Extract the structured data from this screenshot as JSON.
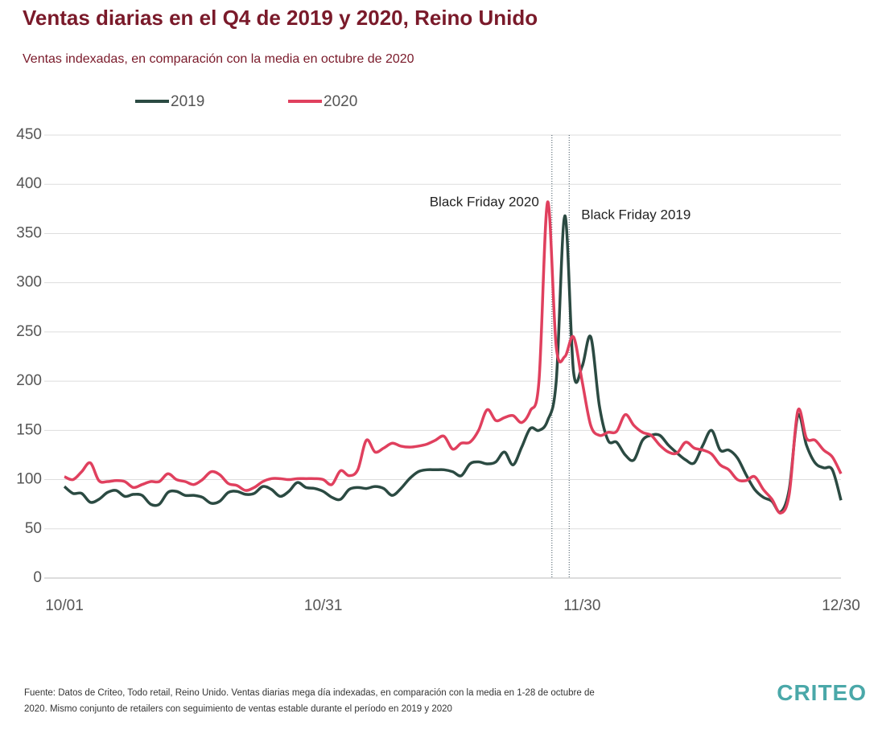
{
  "chart_data": {
    "type": "line",
    "title": "Ventas diarias en el Q4 de 2019 y 2020, Reino Unido",
    "subtitle": "Ventas indexadas, en comparación con la media en octubre de 2020",
    "categories": [
      "10/01",
      null,
      null,
      null,
      null,
      null,
      null,
      null,
      null,
      null,
      null,
      null,
      null,
      null,
      null,
      null,
      null,
      null,
      null,
      null,
      null,
      null,
      null,
      null,
      null,
      null,
      null,
      null,
      null,
      null,
      "10/31",
      null,
      null,
      null,
      null,
      null,
      null,
      null,
      null,
      null,
      null,
      null,
      null,
      null,
      null,
      null,
      null,
      null,
      null,
      null,
      null,
      null,
      null,
      null,
      null,
      null,
      null,
      null,
      null,
      null,
      "11/30",
      null,
      null,
      null,
      null,
      null,
      null,
      null,
      null,
      null,
      null,
      null,
      null,
      null,
      null,
      null,
      null,
      null,
      null,
      null,
      null,
      null,
      null,
      null,
      null,
      null,
      null,
      null,
      null,
      null,
      "12/30"
    ],
    "series": [
      {
        "name": "2019",
        "color": "#2b4a42",
        "values": [
          93,
          86,
          86,
          77,
          80,
          87,
          89,
          83,
          85,
          84,
          75,
          75,
          87,
          88,
          84,
          84,
          82,
          76,
          78,
          87,
          88,
          85,
          86,
          93,
          90,
          83,
          88,
          97,
          92,
          91,
          88,
          82,
          80,
          90,
          92,
          91,
          93,
          91,
          84,
          91,
          101,
          108,
          110,
          110,
          110,
          108,
          104,
          116,
          118,
          116,
          118,
          128,
          115,
          133,
          152,
          150,
          160,
          200,
          368,
          210,
          215,
          245,
          175,
          140,
          138,
          125,
          120,
          140,
          145,
          145,
          135,
          127,
          120,
          117,
          135,
          150,
          130,
          130,
          122,
          105,
          90,
          82,
          78,
          67,
          90,
          165,
          135,
          117,
          112,
          110,
          79
        ]
      },
      {
        "name": "2020",
        "color": "#e0405e",
        "values": [
          103,
          100,
          108,
          117,
          99,
          98,
          99,
          98,
          92,
          95,
          98,
          98,
          106,
          100,
          98,
          95,
          100,
          108,
          105,
          96,
          94,
          89,
          92,
          98,
          101,
          101,
          100,
          101,
          101,
          101,
          100,
          95,
          109,
          104,
          110,
          140,
          128,
          132,
          137,
          134,
          133,
          134,
          136,
          140,
          144,
          131,
          137,
          138,
          150,
          171,
          160,
          163,
          165,
          158,
          170,
          200,
          382,
          235,
          225,
          245,
          200,
          155,
          145,
          148,
          149,
          166,
          155,
          148,
          145,
          135,
          128,
          127,
          138,
          132,
          130,
          126,
          115,
          110,
          100,
          99,
          103,
          90,
          80,
          66,
          85,
          170,
          142,
          140,
          130,
          123,
          106
        ]
      }
    ],
    "ylim": [
      0,
      450
    ],
    "yticks": [
      0,
      50,
      100,
      150,
      200,
      250,
      300,
      350,
      400,
      450
    ],
    "grid": true,
    "annotations": [
      {
        "text": "Black Friday 2020",
        "x": 56.5
      },
      {
        "text": "Black Friday 2019",
        "x": 58.5
      }
    ],
    "legend": "top",
    "footnote": "Fuente: Datos de Criteo, Todo retail, Reino Unido. Ventas diarias mega día indexadas, en comparación con la media en 1-28 de octubre de 2020. Mismo conjunto de retailers con seguimiento de ventas estable durante el período en 2019 y 2020",
    "logo": "CRITEO"
  }
}
